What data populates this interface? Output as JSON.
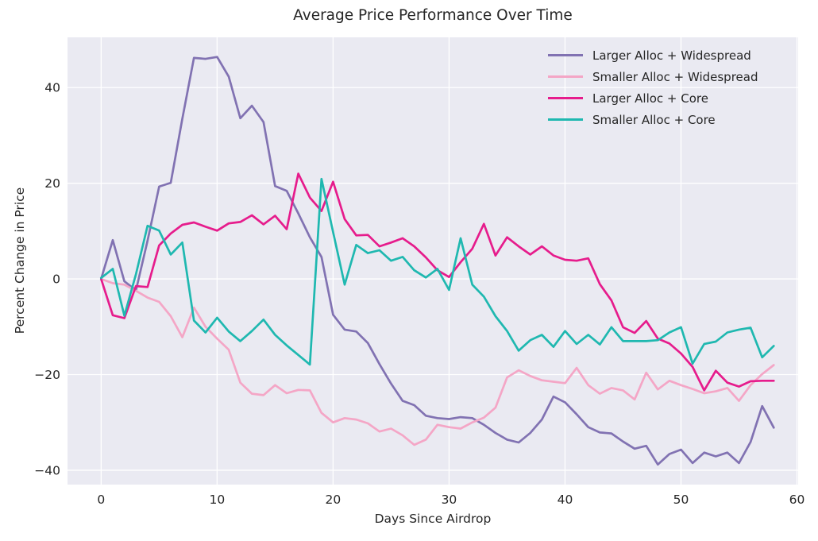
{
  "title": "Average Price Performance Over Time",
  "colors": {
    "figure_bg": "#ffffff",
    "plot_bg": "#eaeaf2",
    "grid": "#ffffff",
    "text": "#262626"
  },
  "chart_data": {
    "type": "line",
    "title": "Average Price Performance Over Time",
    "xlabel": "Days Since Airdrop",
    "ylabel": "Percent Change in Price",
    "xlim": [
      -2.9,
      60.1
    ],
    "ylim": [
      -43,
      50.5
    ],
    "x_ticks": [
      0,
      10,
      20,
      30,
      40,
      50,
      60
    ],
    "y_ticks": [
      -40,
      -20,
      0,
      20,
      40
    ],
    "grid": true,
    "legend_position": "upper right",
    "x": [
      0,
      1,
      2,
      3,
      4,
      5,
      6,
      7,
      8,
      9,
      10,
      11,
      12,
      13,
      14,
      15,
      16,
      17,
      18,
      19,
      20,
      21,
      22,
      23,
      24,
      25,
      26,
      27,
      28,
      29,
      30,
      31,
      32,
      33,
      34,
      35,
      36,
      37,
      38,
      39,
      40,
      41,
      42,
      43,
      44,
      45,
      46,
      47,
      48,
      49,
      50,
      51,
      52,
      53,
      54,
      55,
      56,
      57,
      58
    ],
    "series": [
      {
        "name": "Larger Alloc + Widespread",
        "color": "#8172b2",
        "values": [
          0,
          8.1,
          -0.5,
          -2.4,
          8.0,
          19.3,
          20.1,
          33.5,
          46.2,
          46.0,
          46.4,
          42.3,
          33.6,
          36.2,
          32.8,
          19.4,
          18.4,
          13.7,
          8.7,
          4.6,
          -7.5,
          -10.6,
          -11.0,
          -13.4,
          -17.8,
          -21.9,
          -25.5,
          -26.4,
          -28.6,
          -29.1,
          -29.3,
          -28.9,
          -29.1,
          -30.5,
          -32.2,
          -33.6,
          -34.2,
          -32.2,
          -29.4,
          -24.6,
          -25.8,
          -28.3,
          -31.0,
          -32.1,
          -32.3,
          -34.0,
          -35.5,
          -34.9,
          -38.8,
          -36.6,
          -35.7,
          -38.5,
          -36.3,
          -37.1,
          -36.3,
          -38.5,
          -34.1,
          -26.6,
          -31.1
        ]
      },
      {
        "name": "Smaller Alloc + Widespread",
        "color": "#f4a6c6",
        "values": [
          0,
          -0.9,
          -1.2,
          -2.5,
          -3.9,
          -4.8,
          -7.8,
          -12.2,
          -6.0,
          -10.0,
          -12.5,
          -14.8,
          -21.7,
          -24.0,
          -24.3,
          -22.2,
          -23.9,
          -23.2,
          -23.3,
          -28.0,
          -30.0,
          -29.1,
          -29.4,
          -30.2,
          -31.9,
          -31.3,
          -32.7,
          -34.7,
          -33.6,
          -30.5,
          -31.0,
          -31.3,
          -30.0,
          -29.0,
          -26.9,
          -20.6,
          -19.1,
          -20.3,
          -21.2,
          -21.5,
          -21.8,
          -18.6,
          -22.2,
          -24.0,
          -22.8,
          -23.3,
          -25.2,
          -19.6,
          -23.1,
          -21.3,
          -22.2,
          -23.0,
          -23.9,
          -23.5,
          -22.8,
          -25.5,
          -22.2,
          -19.9,
          -18.0
        ]
      },
      {
        "name": "Larger Alloc + Core",
        "color": "#e61c8c",
        "values": [
          0,
          -7.6,
          -8.2,
          -1.5,
          -1.7,
          7.0,
          9.5,
          11.3,
          11.8,
          10.9,
          10.1,
          11.6,
          11.9,
          13.3,
          11.4,
          13.2,
          10.4,
          22.0,
          17.0,
          14.2,
          20.3,
          12.5,
          9.1,
          9.2,
          6.8,
          7.6,
          8.5,
          6.8,
          4.5,
          1.8,
          0.4,
          3.5,
          6.3,
          11.5,
          4.9,
          8.7,
          6.8,
          5.1,
          6.8,
          4.9,
          4.0,
          3.8,
          4.3,
          -1.1,
          -4.5,
          -10.1,
          -11.3,
          -8.8,
          -12.5,
          -13.5,
          -15.6,
          -18.4,
          -23.3,
          -19.2,
          -21.7,
          -22.5,
          -21.4,
          -21.3,
          -21.3
        ]
      },
      {
        "name": "Smaller Alloc + Core",
        "color": "#1fb8b0",
        "values": [
          0.2,
          2.1,
          -7.7,
          1.0,
          11.1,
          10.1,
          5.1,
          7.6,
          -8.7,
          -11.2,
          -8.1,
          -11.0,
          -13.0,
          -10.9,
          -8.5,
          -11.7,
          -13.9,
          -15.9,
          -17.9,
          20.9,
          9.8,
          -1.2,
          7.1,
          5.4,
          6.0,
          3.8,
          4.6,
          1.8,
          0.3,
          2.1,
          -2.3,
          8.5,
          -1.2,
          -3.7,
          -7.8,
          -10.9,
          -15.0,
          -12.8,
          -11.7,
          -14.2,
          -10.9,
          -13.6,
          -11.7,
          -13.7,
          -10.1,
          -13.0,
          -13.0,
          -13.0,
          -12.8,
          -11.2,
          -10.1,
          -17.7,
          -13.6,
          -13.1,
          -11.2,
          -10.6,
          -10.2,
          -16.4,
          -14.0
        ]
      }
    ]
  }
}
